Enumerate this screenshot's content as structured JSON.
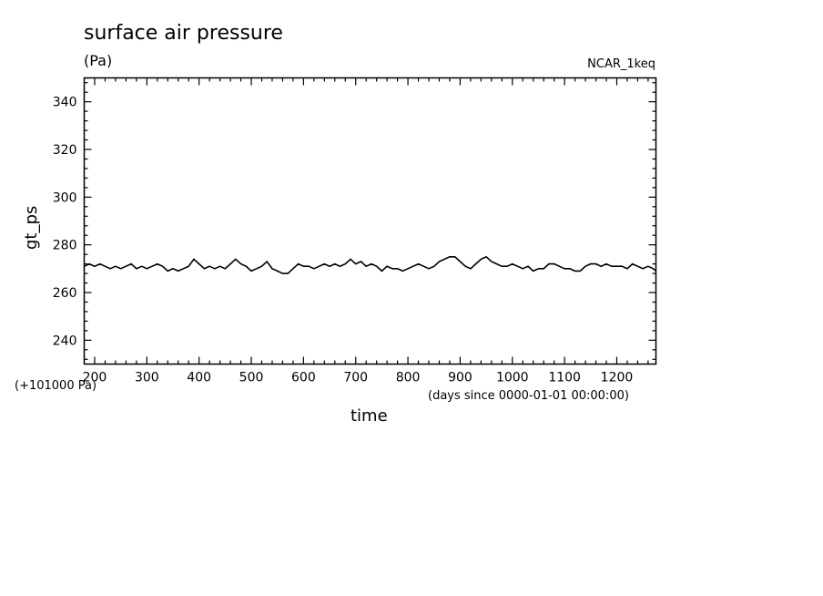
{
  "chart_data": {
    "type": "line",
    "title": "surface air pressure",
    "units": "(Pa)",
    "run_tag": "NCAR_1keq",
    "offset_note": "(+101000 Pa)",
    "xlabel": "time",
    "x_units_note": "(days since 0000-01-01 00:00:00)",
    "ylabel": "gt_ps",
    "xlim": [
      180,
      1275
    ],
    "ylim": [
      230,
      350
    ],
    "xticks": [
      200,
      300,
      400,
      500,
      600,
      700,
      800,
      900,
      1000,
      1100,
      1200
    ],
    "yticks": [
      240,
      260,
      280,
      300,
      320,
      340
    ],
    "grid": false,
    "series": [
      {
        "x": [
          180,
          190,
          200,
          210,
          220,
          230,
          240,
          250,
          260,
          270,
          280,
          290,
          300,
          310,
          320,
          330,
          340,
          350,
          360,
          370,
          380,
          390,
          400,
          410,
          420,
          430,
          440,
          450,
          460,
          470,
          480,
          490,
          500,
          510,
          520,
          530,
          540,
          550,
          560,
          570,
          580,
          590,
          600,
          610,
          620,
          630,
          640,
          650,
          660,
          670,
          680,
          690,
          700,
          710,
          720,
          730,
          740,
          750,
          760,
          770,
          780,
          790,
          800,
          810,
          820,
          830,
          840,
          850,
          860,
          870,
          880,
          890,
          900,
          910,
          920,
          930,
          940,
          950,
          960,
          970,
          980,
          990,
          1000,
          1010,
          1020,
          1030,
          1040,
          1050,
          1060,
          1070,
          1080,
          1090,
          1100,
          1110,
          1120,
          1130,
          1140,
          1150,
          1160,
          1170,
          1180,
          1190,
          1200,
          1210,
          1220,
          1230,
          1240,
          1250,
          1260,
          1270,
          1275
        ],
        "values": [
          271,
          272,
          271,
          272,
          271,
          270,
          271,
          270,
          271,
          272,
          270,
          271,
          270,
          271,
          272,
          271,
          269,
          270,
          269,
          270,
          271,
          274,
          272,
          270,
          271,
          270,
          271,
          270,
          272,
          274,
          272,
          271,
          269,
          270,
          271,
          273,
          270,
          269,
          268,
          268,
          270,
          272,
          271,
          271,
          270,
          271,
          272,
          271,
          272,
          271,
          272,
          274,
          272,
          273,
          271,
          272,
          271,
          269,
          271,
          270,
          270,
          269,
          270,
          271,
          272,
          271,
          270,
          271,
          273,
          274,
          275,
          275,
          273,
          271,
          270,
          272,
          274,
          275,
          273,
          272,
          271,
          271,
          272,
          271,
          270,
          271,
          269,
          270,
          270,
          272,
          272,
          271,
          270,
          270,
          269,
          269,
          271,
          272,
          272,
          271,
          272,
          271,
          271,
          271,
          270,
          272,
          271,
          270,
          271,
          270,
          269
        ]
      }
    ]
  }
}
